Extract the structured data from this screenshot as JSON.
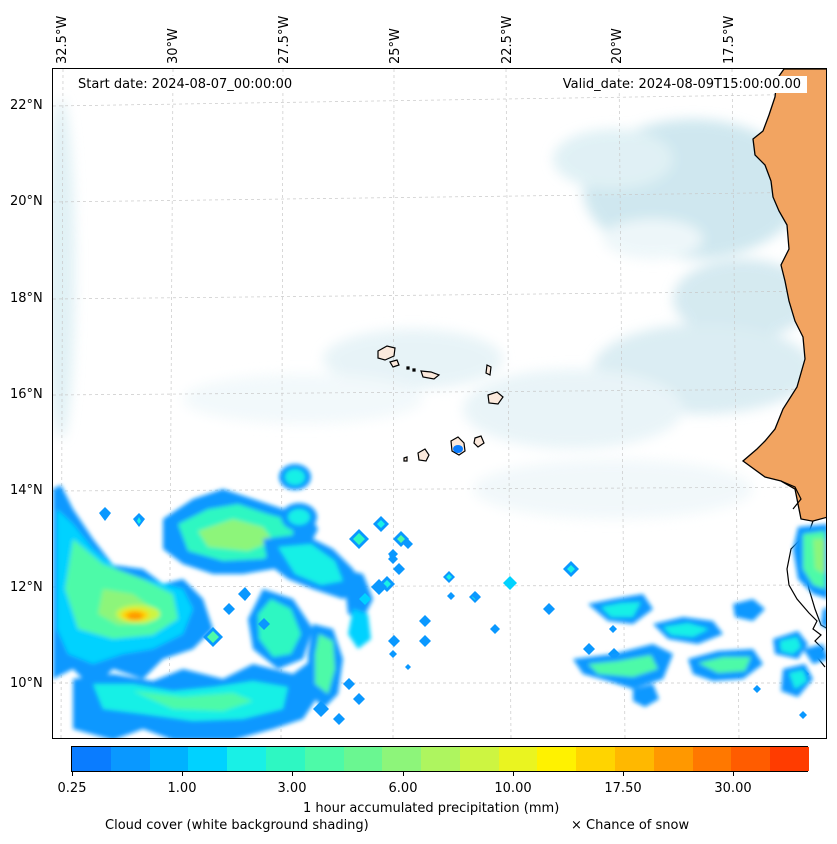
{
  "header": {
    "start_date": "Start date: 2024-08-07_00:00:00",
    "valid_date": "Valid_date: 2024-08-09T15:00:00.00"
  },
  "axes": {
    "lon_labels": [
      "32.5°W",
      "30°W",
      "27.5°W",
      "25°W",
      "22.5°W",
      "20°W",
      "17.5°W"
    ],
    "lat_labels": [
      "22°N",
      "20°N",
      "18°N",
      "16°N",
      "14°N",
      "12°N",
      "10°N"
    ]
  },
  "colorbar": {
    "tick_labels": [
      "0.25",
      "1.00",
      "3.00",
      "6.00",
      "10.00",
      "17.50",
      "30.00"
    ],
    "colors": [
      "#0a7cff",
      "#0a98ff",
      "#00b2ff",
      "#00d2ff",
      "#19f0e6",
      "#2ef7c2",
      "#4dfaa8",
      "#6af791",
      "#8df57a",
      "#aef55f",
      "#cdf541",
      "#eaf420",
      "#fff200",
      "#ffd400",
      "#ffb800",
      "#ff9800",
      "#ff7800",
      "#ff5c00",
      "#ff3c00"
    ],
    "label": "1 hour accumulated precipitation (mm)"
  },
  "legend": {
    "cloud_note": "Cloud cover (white background shading)",
    "snow_note": "× Chance of snow"
  },
  "colors": {
    "land": "#f2a461",
    "cloud": "#bfe0ea",
    "grid": "#c8c8c8"
  }
}
